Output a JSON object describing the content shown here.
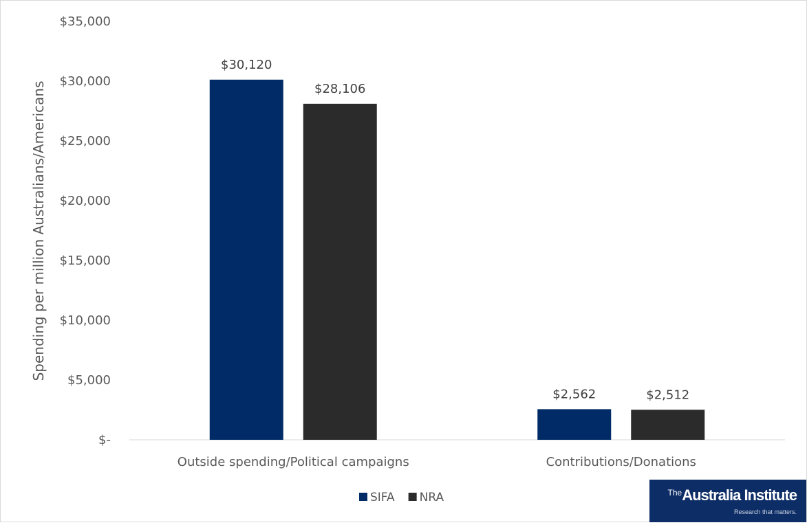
{
  "chart_data": {
    "type": "bar",
    "categories": [
      "Outside spending/Political campaigns",
      "Contributions/Donations"
    ],
    "series": [
      {
        "name": "SIFA",
        "values": [
          30120,
          2562
        ],
        "labels": [
          "$30,120",
          "$2,562"
        ],
        "color": "#002b66"
      },
      {
        "name": "NRA",
        "values": [
          28106,
          2512
        ],
        "labels": [
          "$28,106",
          "$2,512"
        ],
        "color": "#2b2b2b"
      }
    ],
    "ylabel": "Spending per million Australians/Americans",
    "ylim": [
      0,
      35000
    ],
    "yticks": [
      0,
      5000,
      10000,
      15000,
      20000,
      25000,
      30000,
      35000
    ],
    "ytick_labels": [
      "$-",
      "$5,000",
      "$10,000",
      "$15,000",
      "$20,000",
      "$25,000",
      "$30,000",
      "$35,000"
    ],
    "grid": false,
    "legend_position": "bottom"
  },
  "logo": {
    "prefix": "The",
    "name": "Australia Institute",
    "tagline": "Research that matters."
  }
}
